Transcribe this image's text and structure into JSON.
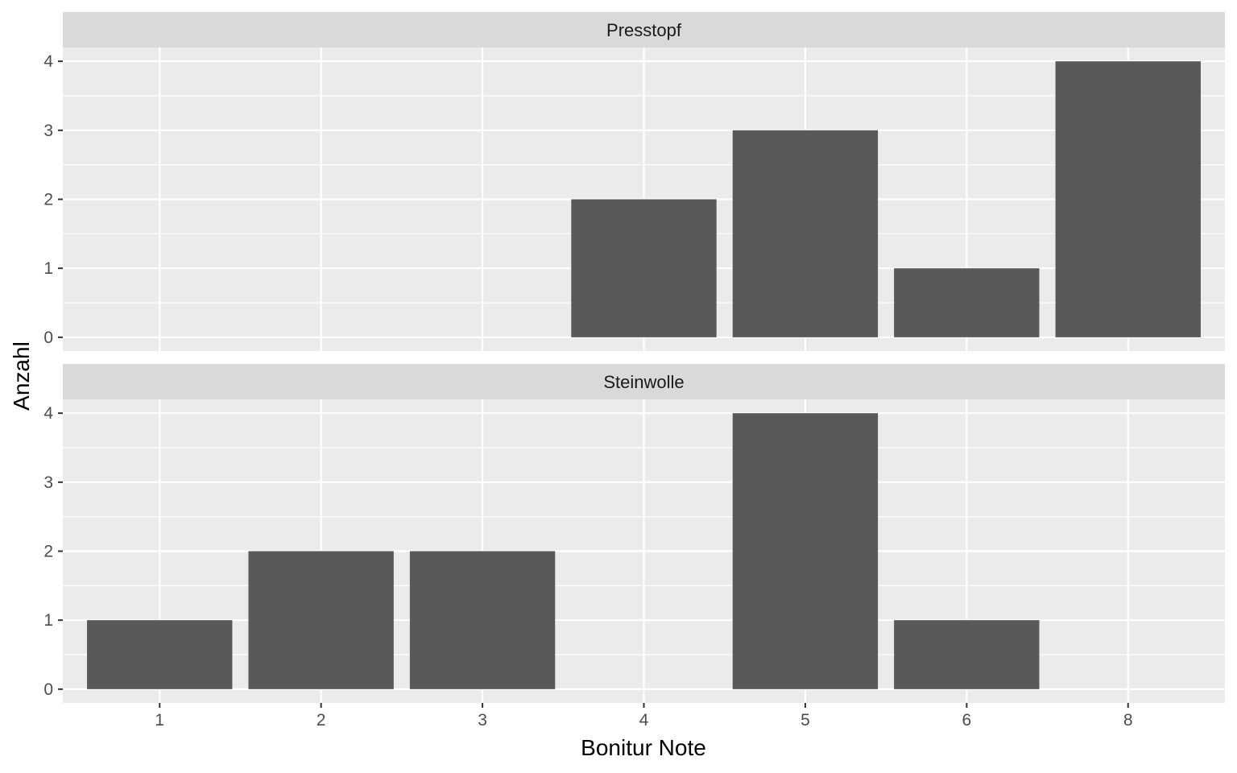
{
  "chart_data": {
    "type": "bar",
    "xlabel": "Bonitur Note",
    "ylabel": "Anzahl",
    "categories": [
      "1",
      "2",
      "3",
      "4",
      "5",
      "6",
      "8"
    ],
    "ylim": [
      0,
      4
    ],
    "yticks": [
      0,
      1,
      2,
      3,
      4
    ],
    "grid": true,
    "facets": [
      {
        "name": "Presstopf",
        "values": [
          0,
          0,
          0,
          2,
          3,
          1,
          4
        ]
      },
      {
        "name": "Steinwolle",
        "values": [
          1,
          2,
          2,
          0,
          4,
          1,
          0
        ]
      }
    ],
    "colors": {
      "bar": "#595959",
      "panel": "#ebebeb",
      "strip": "#d9d9d9",
      "grid": "#ffffff"
    }
  }
}
